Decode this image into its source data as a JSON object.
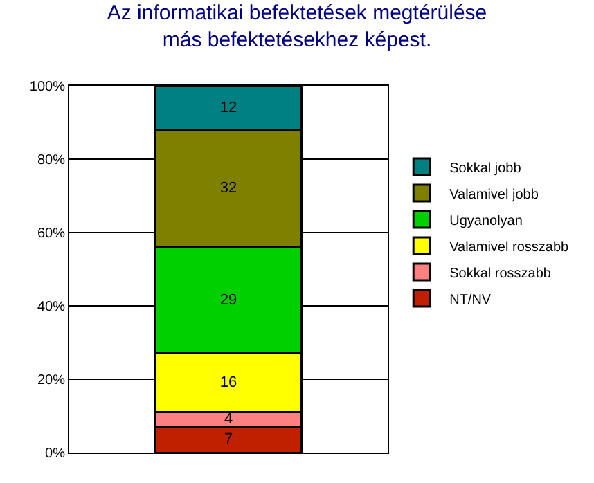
{
  "chart_data": {
    "type": "bar",
    "title": "Az informatikai befektetések megtérülése\nmás befektetésekhez képest.",
    "categories": [
      null
    ],
    "stacked": true,
    "data_labels": true,
    "grid": "y",
    "legend": "right",
    "ylim": [
      0,
      100
    ],
    "yticks": [
      {
        "value": 0,
        "label": "0%"
      },
      {
        "value": 20,
        "label": "20%"
      },
      {
        "value": 40,
        "label": "40%"
      },
      {
        "value": 60,
        "label": "60%"
      },
      {
        "value": 80,
        "label": "80%"
      },
      {
        "value": 100,
        "label": "100%"
      }
    ],
    "series": [
      {
        "name": "NT/NV",
        "color": "#c02000",
        "values": [
          7
        ]
      },
      {
        "name": "Sokkal rosszabb",
        "color": "#ff8080",
        "values": [
          4
        ]
      },
      {
        "name": "Valamivel rosszabb",
        "color": "#ffff00",
        "values": [
          16
        ]
      },
      {
        "name": "Ugyanolyan",
        "color": "#00d000",
        "values": [
          29
        ]
      },
      {
        "name": "Valamivel jobb",
        "color": "#808000",
        "values": [
          32
        ]
      },
      {
        "name": "Sokkal jobb",
        "color": "#008080",
        "values": [
          12
        ]
      }
    ]
  }
}
